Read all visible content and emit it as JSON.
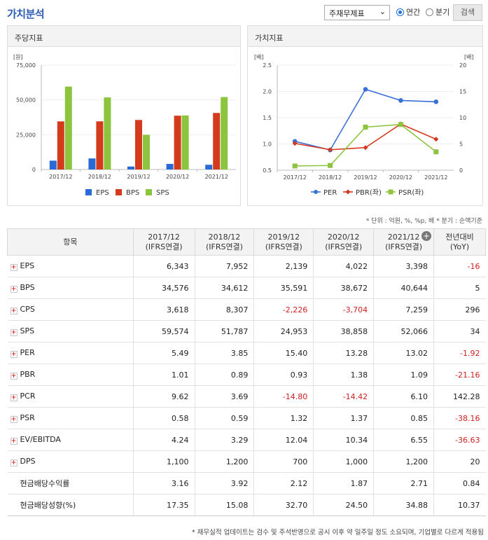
{
  "header": {
    "title": "가치분석",
    "select_value": "주재무제표",
    "radio_annual": "연간",
    "radio_quarter": "분기",
    "search": "검색"
  },
  "left_chart": {
    "panel_title": "주당지표",
    "unit": "[원]",
    "yticks": [
      "75,000",
      "50,000",
      "25,000",
      "0"
    ],
    "categories": [
      "2017/12",
      "2018/12",
      "2019/12",
      "2020/12",
      "2021/12"
    ],
    "legend": [
      "EPS",
      "BPS",
      "SPS"
    ]
  },
  "right_chart": {
    "panel_title": "가치지표",
    "unit_left": "[배]",
    "unit_right": "[배]",
    "yticks_left": [
      "2.5",
      "2.0",
      "1.5",
      "1.0",
      "0.5"
    ],
    "yticks_right": [
      "20",
      "15",
      "10",
      "5",
      "0"
    ],
    "categories": [
      "2017/12",
      "2018/12",
      "2019/12",
      "2020/12",
      "2021/12"
    ],
    "legend": [
      "PER",
      "PBR(좌)",
      "PSR(좌)"
    ]
  },
  "colors": {
    "eps": "#2a6ad6",
    "bps": "#d43a1c",
    "sps": "#8cc43e",
    "per": "#3b6fd8",
    "pbr": "#d6381f",
    "psr": "#8cc43e"
  },
  "chart_data": [
    {
      "type": "bar",
      "title": "주당지표",
      "ylabel": "[원]",
      "ylim": [
        0,
        75000
      ],
      "categories": [
        "2017/12",
        "2018/12",
        "2019/12",
        "2020/12",
        "2021/12"
      ],
      "series": [
        {
          "name": "EPS",
          "values": [
            6343,
            7952,
            2139,
            4022,
            3398
          ]
        },
        {
          "name": "BPS",
          "values": [
            34576,
            34612,
            35591,
            38672,
            40644
          ]
        },
        {
          "name": "SPS",
          "values": [
            59574,
            51787,
            24953,
            38858,
            52066
          ]
        }
      ]
    },
    {
      "type": "line",
      "title": "가치지표",
      "ylabel": "[배]",
      "ylim": [
        0.5,
        2.5
      ],
      "ylim_right": [
        0,
        20
      ],
      "categories": [
        "2017/12",
        "2018/12",
        "2019/12",
        "2020/12",
        "2021/12"
      ],
      "series": [
        {
          "name": "PER",
          "axis": "right",
          "values": [
            5.49,
            3.85,
            15.4,
            13.28,
            13.02
          ]
        },
        {
          "name": "PBR(좌)",
          "axis": "left",
          "values": [
            1.01,
            0.89,
            0.93,
            1.38,
            1.09
          ]
        },
        {
          "name": "PSR(좌)",
          "axis": "left",
          "values": [
            0.58,
            0.59,
            1.32,
            1.37,
            0.85
          ]
        }
      ]
    }
  ],
  "note": "* 단위 : 억원, %, %p, 배    * 분기 : 순액기준",
  "table": {
    "headers": [
      {
        "l1": "항목",
        "l2": ""
      },
      {
        "l1": "2017/12",
        "l2": "(IFRS연결)"
      },
      {
        "l1": "2018/12",
        "l2": "(IFRS연결)"
      },
      {
        "l1": "2019/12",
        "l2": "(IFRS연결)"
      },
      {
        "l1": "2020/12",
        "l2": "(IFRS연결)"
      },
      {
        "l1": "2021/12",
        "l2": "(IFRS연결)"
      },
      {
        "l1": "전년대비",
        "l2": "(YoY)"
      }
    ],
    "rows": [
      {
        "label": "EPS",
        "plus": true,
        "values": [
          "6,343",
          "7,952",
          "2,139",
          "4,022",
          "3,398",
          "-16"
        ]
      },
      {
        "label": "BPS",
        "plus": true,
        "values": [
          "34,576",
          "34,612",
          "35,591",
          "38,672",
          "40,644",
          "5"
        ]
      },
      {
        "label": "CPS",
        "plus": true,
        "values": [
          "3,618",
          "8,307",
          "-2,226",
          "-3,704",
          "7,259",
          "296"
        ]
      },
      {
        "label": "SPS",
        "plus": true,
        "values": [
          "59,574",
          "51,787",
          "24,953",
          "38,858",
          "52,066",
          "34"
        ]
      },
      {
        "label": "PER",
        "plus": true,
        "values": [
          "5.49",
          "3.85",
          "15.40",
          "13.28",
          "13.02",
          "-1.92"
        ]
      },
      {
        "label": "PBR",
        "plus": true,
        "values": [
          "1.01",
          "0.89",
          "0.93",
          "1.38",
          "1.09",
          "-21.16"
        ]
      },
      {
        "label": "PCR",
        "plus": true,
        "values": [
          "9.62",
          "3.69",
          "-14.80",
          "-14.42",
          "6.10",
          "142.28"
        ]
      },
      {
        "label": "PSR",
        "plus": true,
        "values": [
          "0.58",
          "0.59",
          "1.32",
          "1.37",
          "0.85",
          "-38.16"
        ]
      },
      {
        "label": "EV/EBITDA",
        "plus": true,
        "values": [
          "4.24",
          "3.29",
          "12.04",
          "10.34",
          "6.55",
          "-36.63"
        ]
      },
      {
        "label": "DPS",
        "plus": true,
        "values": [
          "1,100",
          "1,200",
          "700",
          "1,000",
          "1,200",
          "20"
        ]
      },
      {
        "label": "현금배당수익률",
        "plus": false,
        "values": [
          "3.16",
          "3.92",
          "2.12",
          "1.87",
          "2.71",
          "0.84"
        ]
      },
      {
        "label": "현금배당성향(%)",
        "plus": false,
        "values": [
          "17.35",
          "15.08",
          "32.70",
          "24.50",
          "34.88",
          "10.37"
        ]
      }
    ]
  },
  "footer": "* 재무실적 업데이트는 검수 및 주석반영으로 공시 이후 약 일주일 정도 소요되며, 기업별로 다르게 적용됨"
}
